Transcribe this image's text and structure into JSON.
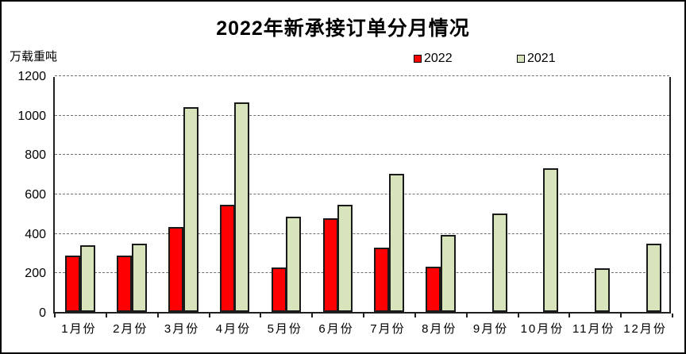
{
  "title": "2022年新承接订单分月情况",
  "y_axis_unit": "万载重吨",
  "legend": {
    "items": [
      {
        "label": "2022",
        "color": "#ff0000"
      },
      {
        "label": "2021",
        "color": "#d8e4bc"
      }
    ]
  },
  "chart_data": {
    "type": "bar",
    "title": "2022年新承接订单分月情况",
    "ylabel": "万载重吨",
    "xlabel": "",
    "categories": [
      "1月份",
      "2月份",
      "3月份",
      "4月份",
      "5月份",
      "6月份",
      "7月份",
      "8月份",
      "9月份",
      "10月份",
      "11月份",
      "12月份"
    ],
    "series": [
      {
        "name": "2022",
        "color": "#ff0000",
        "border_color": "#1a1a1a",
        "values": [
          285,
          285,
          430,
          545,
          225,
          475,
          325,
          230,
          null,
          null,
          null,
          null
        ]
      },
      {
        "name": "2021",
        "color": "#d8e4bc",
        "border_color": "#1a1a1a",
        "values": [
          340,
          345,
          1040,
          1065,
          485,
          545,
          700,
          390,
          500,
          730,
          220,
          345
        ]
      }
    ],
    "ylim": [
      0,
      1200
    ],
    "yticks": [
      0,
      200,
      400,
      600,
      800,
      1000,
      1200
    ],
    "grid": "horizontal-dashed",
    "legend_position": "top"
  }
}
